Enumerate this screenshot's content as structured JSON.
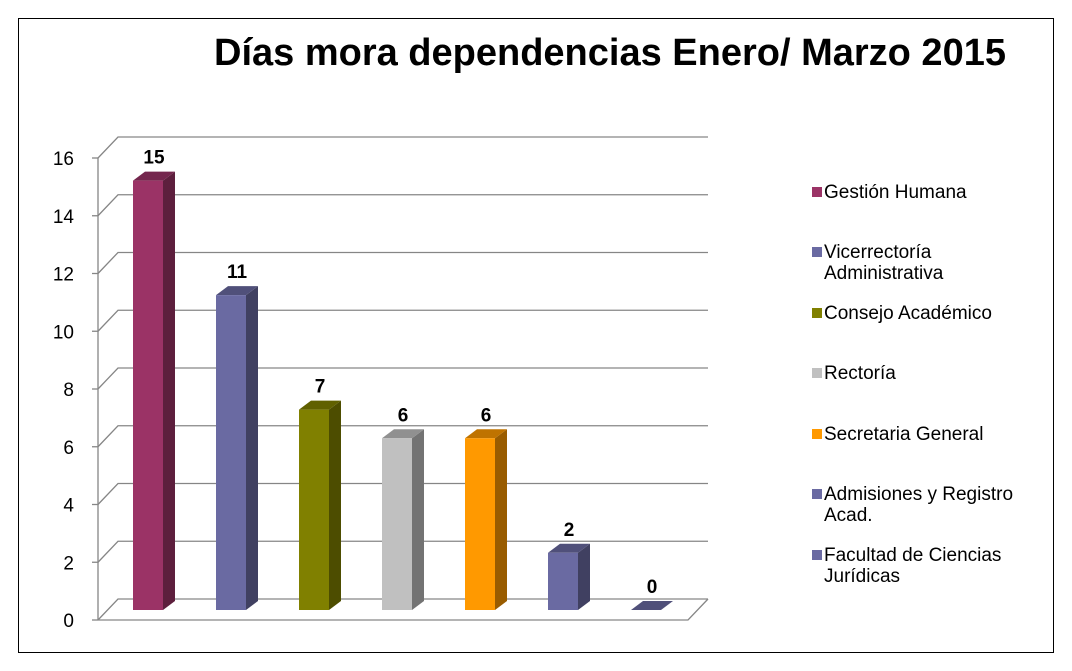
{
  "chart_data": {
    "type": "bar3d",
    "title": "Días mora dependencias Enero/ Marzo 2015",
    "categories": [
      "Gestión Humana",
      "Vicerrectoría Administrativa",
      "Consejo Académico",
      "Rectoría",
      "Secretaria General",
      "Admisiones y Registro Acad.",
      "Facultad de Ciencias Jurídicas"
    ],
    "values": [
      15,
      11,
      7,
      6,
      6,
      2,
      0
    ],
    "colors": [
      "#9b3366",
      "#6a6aa2",
      "#808000",
      "#c0c0c0",
      "#ff9900",
      "#6a6aa2",
      "#6a6aa2"
    ],
    "ylim": [
      0,
      16
    ],
    "yticks": [
      0,
      2,
      4,
      6,
      8,
      10,
      12,
      14,
      16
    ],
    "grid": true,
    "legend": "right"
  }
}
